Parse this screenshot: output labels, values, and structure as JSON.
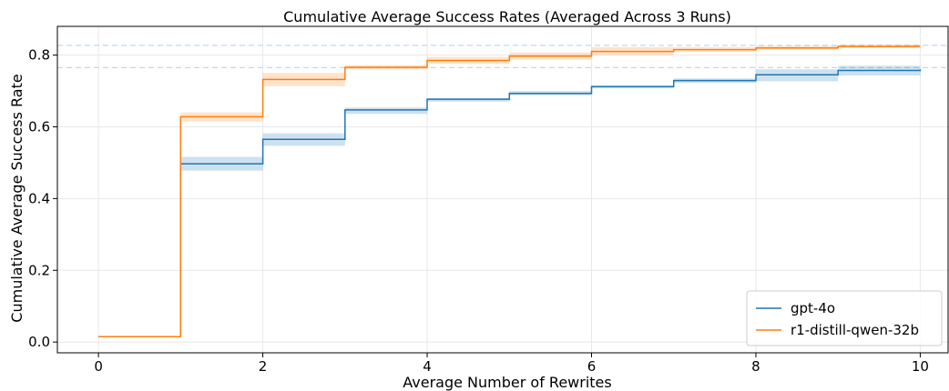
{
  "chart_data": {
    "type": "line",
    "title": "Cumulative Average Success Rates (Averaged Across 3 Runs)",
    "xlabel": "Average Number of Rewrites",
    "ylabel": "Cumulative Average Success Rate",
    "xlim": [
      -0.5,
      10.35
    ],
    "ylim": [
      -0.03,
      0.88
    ],
    "xticks": [
      0,
      2,
      4,
      6,
      8,
      10
    ],
    "yticks": [
      0.0,
      0.2,
      0.4,
      0.6,
      0.8
    ],
    "ytick_labels": [
      "0.0",
      "0.2",
      "0.4",
      "0.6",
      "0.8"
    ],
    "grid": true,
    "legend_position": "bottom-right",
    "step": "post",
    "series": [
      {
        "name": "gpt-4o",
        "color": "#1f77b4",
        "x": [
          0,
          1,
          2,
          3,
          4,
          5,
          6,
          7,
          8,
          9,
          10
        ],
        "y": [
          0.015,
          0.497,
          0.565,
          0.647,
          0.677,
          0.693,
          0.712,
          0.729,
          0.745,
          0.757,
          0.76
        ],
        "y_lower": [
          0.015,
          0.478,
          0.547,
          0.636,
          0.67,
          0.688,
          0.707,
          0.722,
          0.727,
          0.743,
          0.745
        ],
        "y_upper": [
          0.015,
          0.516,
          0.582,
          0.654,
          0.68,
          0.7,
          0.715,
          0.735,
          0.76,
          0.77,
          0.77
        ]
      },
      {
        "name": "r1-distill-qwen-32b",
        "color": "#ff7f0e",
        "x": [
          0,
          1,
          2,
          3,
          4,
          5,
          6,
          7,
          8,
          9,
          10
        ],
        "y": [
          0.015,
          0.628,
          0.732,
          0.766,
          0.785,
          0.797,
          0.81,
          0.815,
          0.82,
          0.824,
          0.824
        ],
        "y_lower": [
          0.015,
          0.615,
          0.713,
          0.76,
          0.775,
          0.787,
          0.8,
          0.81,
          0.815,
          0.82,
          0.82
        ],
        "y_upper": [
          0.015,
          0.64,
          0.75,
          0.772,
          0.795,
          0.807,
          0.822,
          0.822,
          0.826,
          0.83,
          0.83
        ]
      }
    ],
    "reference_lines": [
      {
        "y": 0.827,
        "color": "#c6d7ea"
      },
      {
        "y": 0.765,
        "color": "#c6d7ea"
      }
    ]
  }
}
